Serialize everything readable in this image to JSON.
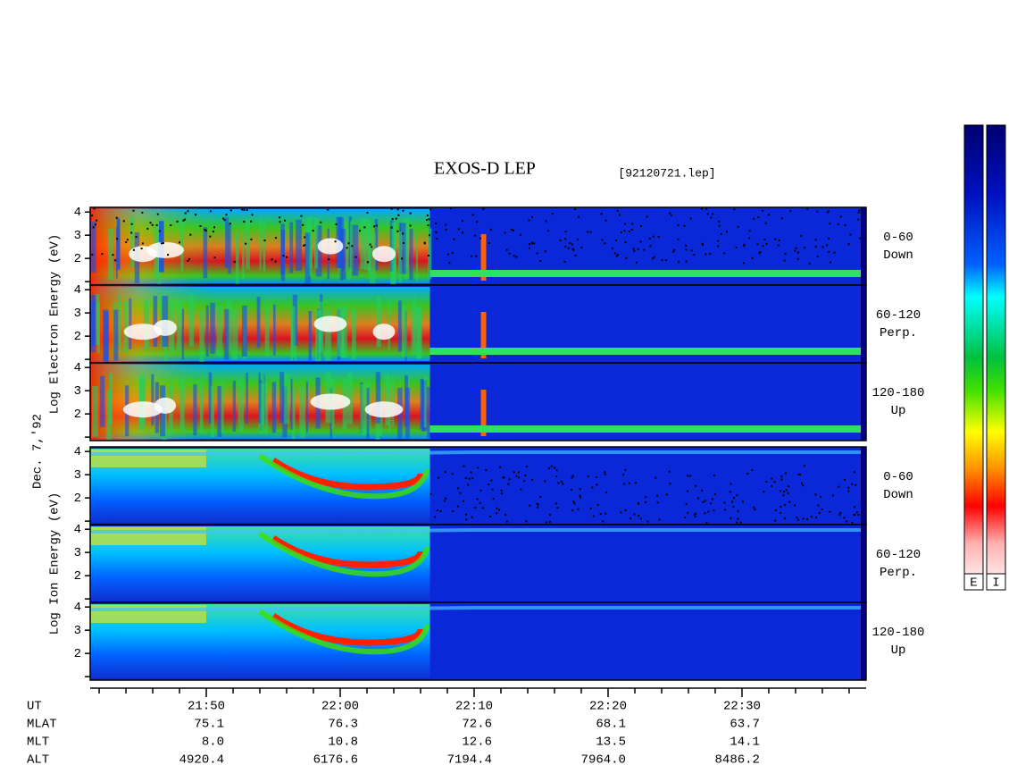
{
  "chart_data": {
    "type": "spectrogram",
    "title": "EXOS-D LEP",
    "file_label": "[92120721.lep]",
    "date_label": "Dec. 7,'92",
    "groups": [
      {
        "ylabel": "Log Electron Energy (eV)",
        "kind": "electron",
        "panels": [
          {
            "label": [
              "0-60",
              "Down"
            ]
          },
          {
            "label": [
              "60-120",
              "Perp."
            ]
          },
          {
            "label": [
              "120-180",
              "Up"
            ]
          }
        ]
      },
      {
        "ylabel": "Log Ion Energy (eV)",
        "kind": "ion",
        "panels": [
          {
            "label": [
              "0-60",
              "Down"
            ]
          },
          {
            "label": [
              "60-120",
              "Perp."
            ]
          },
          {
            "label": [
              "120-180",
              "Up"
            ]
          }
        ]
      }
    ],
    "ylim": [
      0.85,
      4.2
    ],
    "yticks": [
      {
        "value": 1,
        "label": null
      },
      2,
      3,
      4
    ],
    "xlim": [
      1301.33,
      1359.27
    ],
    "xticks": [
      {
        "value": 1310,
        "label": "21:50"
      },
      {
        "value": 1320,
        "label": "22:00"
      },
      {
        "value": 1330,
        "label": "22:10"
      },
      {
        "value": 1340,
        "label": "22:20"
      },
      {
        "value": 1350,
        "label": "22:30"
      }
    ],
    "x_minor_ticks": [
      1302,
      1304,
      1306,
      1308,
      1312,
      1314,
      1316,
      1318,
      1322,
      1324,
      1326,
      1328,
      1332,
      1334,
      1336,
      1338,
      1342,
      1344,
      1346,
      1348,
      1352,
      1354,
      1356,
      1358
    ],
    "x_axis_rows": [
      {
        "name": "UT",
        "values": []
      },
      {
        "name": "MLAT",
        "values": [
          "75.1",
          "76.3",
          "72.6",
          "68.1",
          "63.7"
        ]
      },
      {
        "name": "MLT",
        "values": [
          "8.0",
          "10.8",
          "12.6",
          "13.5",
          "14.1"
        ]
      },
      {
        "name": "ALT",
        "values": [
          "4920.4",
          "6176.6",
          "7194.4",
          "7964.0",
          "8486.2"
        ]
      }
    ],
    "colorbar_labels": [
      "E",
      "I"
    ]
  }
}
